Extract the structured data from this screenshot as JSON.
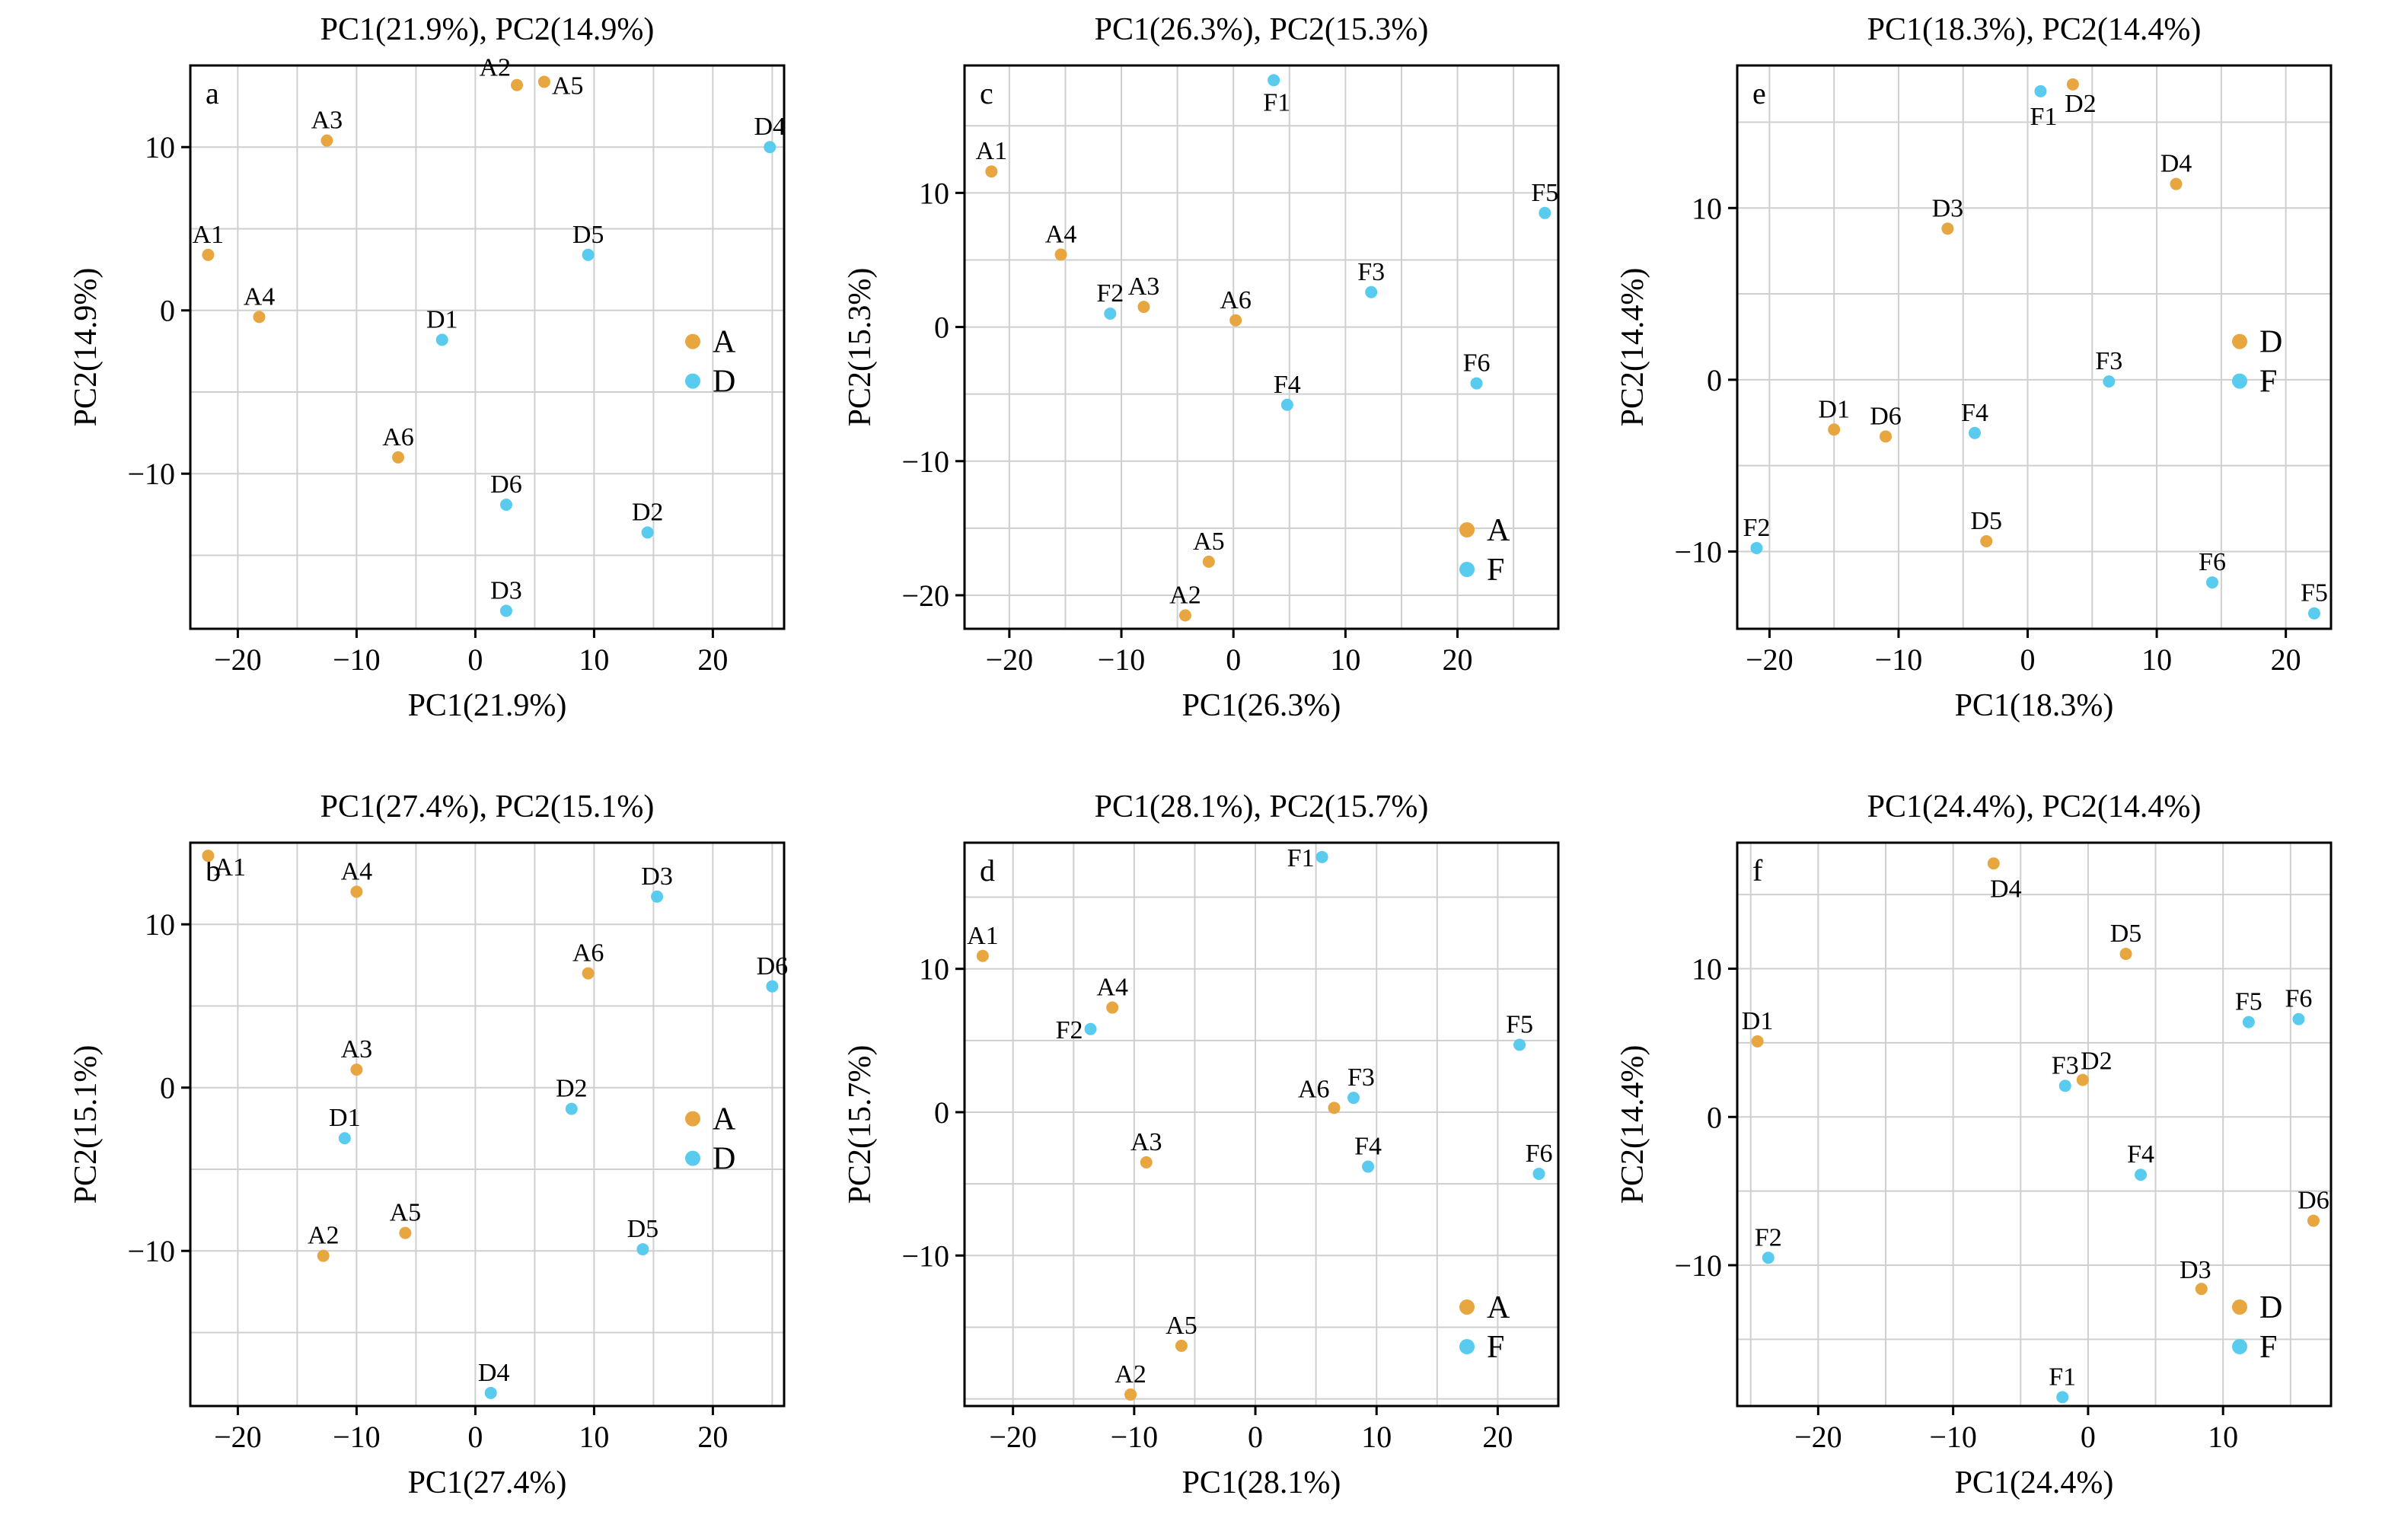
{
  "colors": {
    "orange": "#e8a640",
    "cyan": "#58cbee",
    "grid": "#cfcfcf"
  },
  "chart_data": [
    {
      "type": "scatter",
      "panel": "a",
      "title": "PC1(21.9%), PC2(14.9%)",
      "xlabel": "PC1(21.9%)",
      "ylabel": "PC2(14.9%)",
      "xlim": [
        -24,
        26
      ],
      "ylim": [
        -19.5,
        15
      ],
      "xticks": [
        -20,
        -10,
        0,
        10,
        20
      ],
      "yticks": [
        -10,
        0,
        10
      ],
      "grid": true,
      "legend_position": "right",
      "series": [
        {
          "name": "A",
          "color": "#e8a640",
          "points": [
            {
              "label": "A1",
              "x": -22.5,
              "y": 3.4
            },
            {
              "label": "A2",
              "x": 3.5,
              "y": 13.8
            },
            {
              "label": "A3",
              "x": -12.5,
              "y": 10.4
            },
            {
              "label": "A4",
              "x": -18.2,
              "y": -0.4
            },
            {
              "label": "A5",
              "x": 5.8,
              "y": 14.0
            },
            {
              "label": "A6",
              "x": -6.5,
              "y": -9.0
            }
          ]
        },
        {
          "name": "D",
          "color": "#58cbee",
          "points": [
            {
              "label": "D1",
              "x": -2.8,
              "y": -1.8
            },
            {
              "label": "D2",
              "x": 14.5,
              "y": -13.6
            },
            {
              "label": "D3",
              "x": 2.6,
              "y": -18.4
            },
            {
              "label": "D4",
              "x": 24.8,
              "y": 10.0
            },
            {
              "label": "D5",
              "x": 9.5,
              "y": 3.4
            },
            {
              "label": "D6",
              "x": 2.6,
              "y": -11.9
            }
          ]
        }
      ]
    },
    {
      "type": "scatter",
      "panel": "c",
      "title": "PC1(26.3%), PC2(15.3%)",
      "xlabel": "PC1(26.3%)",
      "ylabel": "PC2(15.3%)",
      "xlim": [
        -24,
        29
      ],
      "ylim": [
        -22.5,
        19.5
      ],
      "xticks": [
        -20,
        -10,
        0,
        10,
        20
      ],
      "yticks": [
        -20,
        -10,
        0,
        10
      ],
      "grid": true,
      "legend_position": "lower right",
      "series": [
        {
          "name": "A",
          "color": "#e8a640",
          "points": [
            {
              "label": "A1",
              "x": -21.6,
              "y": 11.6
            },
            {
              "label": "A2",
              "x": -4.3,
              "y": -21.5
            },
            {
              "label": "A3",
              "x": -8.0,
              "y": 1.5
            },
            {
              "label": "A4",
              "x": -15.4,
              "y": 5.4
            },
            {
              "label": "A5",
              "x": -2.2,
              "y": -17.5
            },
            {
              "label": "A6",
              "x": 0.2,
              "y": 0.5
            }
          ]
        },
        {
          "name": "F",
          "color": "#58cbee",
          "points": [
            {
              "label": "F1",
              "x": 3.6,
              "y": 18.4
            },
            {
              "label": "F2",
              "x": -11.0,
              "y": 1.0
            },
            {
              "label": "F3",
              "x": 12.3,
              "y": 2.6
            },
            {
              "label": "F4",
              "x": 4.8,
              "y": -5.8
            },
            {
              "label": "F5",
              "x": 27.8,
              "y": 8.5
            },
            {
              "label": "F6",
              "x": 21.7,
              "y": -4.2
            }
          ]
        }
      ]
    },
    {
      "type": "scatter",
      "panel": "e",
      "title": "PC1(18.3%), PC2(14.4%)",
      "xlabel": "PC1(18.3%)",
      "ylabel": "PC2(14.4%)",
      "xlim": [
        -22.5,
        23.5
      ],
      "ylim": [
        -14.5,
        18.3
      ],
      "xticks": [
        -20,
        -10,
        0,
        10,
        20
      ],
      "yticks": [
        -10,
        0,
        10
      ],
      "grid": true,
      "legend_position": "right",
      "series": [
        {
          "name": "D",
          "color": "#e8a640",
          "points": [
            {
              "label": "D1",
              "x": -15.0,
              "y": -2.9
            },
            {
              "label": "D2",
              "x": 3.5,
              "y": 17.2
            },
            {
              "label": "D3",
              "x": -6.2,
              "y": 8.8
            },
            {
              "label": "D4",
              "x": 11.5,
              "y": 11.4
            },
            {
              "label": "D5",
              "x": -3.2,
              "y": -9.4
            },
            {
              "label": "D6",
              "x": -11.0,
              "y": -3.3
            }
          ]
        },
        {
          "name": "F",
          "color": "#58cbee",
          "points": [
            {
              "label": "F1",
              "x": 1.0,
              "y": 16.8
            },
            {
              "label": "F2",
              "x": -21.0,
              "y": -9.8
            },
            {
              "label": "F3",
              "x": 6.3,
              "y": -0.1
            },
            {
              "label": "F4",
              "x": -4.1,
              "y": -3.1
            },
            {
              "label": "F5",
              "x": 22.2,
              "y": -13.6
            },
            {
              "label": "F6",
              "x": 14.3,
              "y": -11.8
            }
          ]
        }
      ]
    },
    {
      "type": "scatter",
      "panel": "b",
      "title": "PC1(27.4%), PC2(15.1%)",
      "xlabel": "PC1(27.4%)",
      "ylabel": "PC2(15.1%)",
      "xlim": [
        -24,
        26
      ],
      "ylim": [
        -19.5,
        15
      ],
      "xticks": [
        -20,
        -10,
        0,
        10,
        20
      ],
      "yticks": [
        -10,
        0,
        10
      ],
      "grid": true,
      "legend_position": "right",
      "series": [
        {
          "name": "A",
          "color": "#e8a640",
          "points": [
            {
              "label": "A1",
              "x": -22.5,
              "y": 14.2
            },
            {
              "label": "A2",
              "x": -12.8,
              "y": -10.3
            },
            {
              "label": "A3",
              "x": -10.0,
              "y": 1.1
            },
            {
              "label": "A4",
              "x": -10.0,
              "y": 12.0
            },
            {
              "label": "A5",
              "x": -5.9,
              "y": -8.9
            },
            {
              "label": "A6",
              "x": 9.5,
              "y": 7.0
            }
          ]
        },
        {
          "name": "D",
          "color": "#58cbee",
          "points": [
            {
              "label": "D1",
              "x": -11.0,
              "y": -3.1
            },
            {
              "label": "D2",
              "x": 8.1,
              "y": -1.3
            },
            {
              "label": "D3",
              "x": 15.3,
              "y": 11.7
            },
            {
              "label": "D4",
              "x": 1.3,
              "y": -18.7
            },
            {
              "label": "D5",
              "x": 14.1,
              "y": -9.9
            },
            {
              "label": "D6",
              "x": 25.0,
              "y": 6.2
            }
          ]
        }
      ]
    },
    {
      "type": "scatter",
      "panel": "d",
      "title": "PC1(28.1%), PC2(15.7%)",
      "xlabel": "PC1(28.1%)",
      "ylabel": "PC2(15.7%)",
      "xlim": [
        -24,
        25
      ],
      "ylim": [
        -20.5,
        18.8
      ],
      "xticks": [
        -20,
        -10,
        0,
        10,
        20
      ],
      "yticks": [
        -10,
        0,
        10
      ],
      "grid": true,
      "legend_position": "lower right",
      "series": [
        {
          "name": "A",
          "color": "#e8a640",
          "points": [
            {
              "label": "A1",
              "x": -22.5,
              "y": 10.9
            },
            {
              "label": "A2",
              "x": -10.3,
              "y": -19.7
            },
            {
              "label": "A3",
              "x": -9.0,
              "y": -3.5
            },
            {
              "label": "A4",
              "x": -11.8,
              "y": 7.3
            },
            {
              "label": "A5",
              "x": -6.1,
              "y": -16.3
            },
            {
              "label": "A6",
              "x": 6.5,
              "y": 0.3
            }
          ]
        },
        {
          "name": "F",
          "color": "#58cbee",
          "points": [
            {
              "label": "F1",
              "x": 5.5,
              "y": 17.8
            },
            {
              "label": "F2",
              "x": -13.6,
              "y": 5.8
            },
            {
              "label": "F3",
              "x": 8.1,
              "y": 1.0
            },
            {
              "label": "F4",
              "x": 9.3,
              "y": -3.8
            },
            {
              "label": "F5",
              "x": 21.8,
              "y": 4.7
            },
            {
              "label": "F6",
              "x": 23.4,
              "y": -4.3
            }
          ]
        }
      ]
    },
    {
      "type": "scatter",
      "panel": "f",
      "title": "PC1(24.4%), PC2(14.4%)",
      "xlabel": "PC1(24.4%)",
      "ylabel": "PC2(14.4%)",
      "xlim": [
        -26,
        18
      ],
      "ylim": [
        -19.5,
        18.5
      ],
      "xticks": [
        -20,
        -10,
        0,
        10
      ],
      "yticks": [
        -10,
        0,
        10
      ],
      "grid": true,
      "legend_position": "lower right",
      "series": [
        {
          "name": "D",
          "color": "#e8a640",
          "points": [
            {
              "label": "D1",
              "x": -24.5,
              "y": 5.1
            },
            {
              "label": "D2",
              "x": -0.4,
              "y": 2.5
            },
            {
              "label": "D3",
              "x": 8.4,
              "y": -11.6
            },
            {
              "label": "D4",
              "x": -7.0,
              "y": 17.1
            },
            {
              "label": "D5",
              "x": 2.8,
              "y": 11.0
            },
            {
              "label": "D6",
              "x": 16.7,
              "y": -7.0
            }
          ]
        },
        {
          "name": "F",
          "color": "#58cbee",
          "points": [
            {
              "label": "F1",
              "x": -1.9,
              "y": -18.9
            },
            {
              "label": "F2",
              "x": -23.7,
              "y": -9.5
            },
            {
              "label": "F3",
              "x": -1.7,
              "y": 2.1
            },
            {
              "label": "F4",
              "x": 3.9,
              "y": -3.9
            },
            {
              "label": "F5",
              "x": 11.9,
              "y": 6.4
            },
            {
              "label": "F6",
              "x": 15.6,
              "y": 6.6
            }
          ]
        }
      ]
    }
  ]
}
